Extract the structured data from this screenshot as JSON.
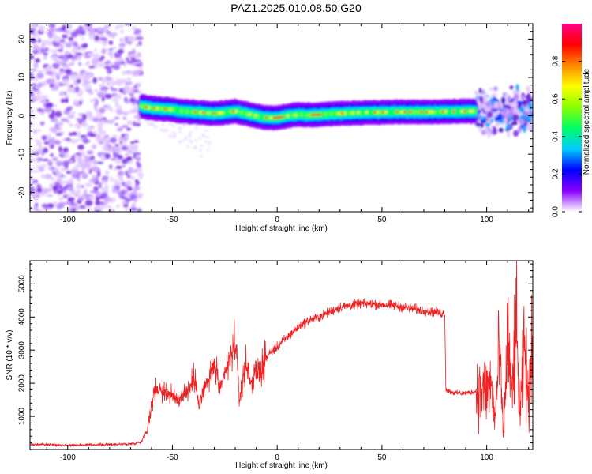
{
  "title": "PAZ1.2025.010.08.50.G20",
  "chart_data": [
    {
      "type": "heatmap",
      "xlabel": "Height of straight line (km)",
      "ylabel": "Frequency (Hz)",
      "xlim": [
        -118,
        122
      ],
      "ylim": [
        -25,
        24
      ],
      "xticks": [
        -100,
        -50,
        0,
        50,
        100
      ],
      "xtick_labels": [
        "-100",
        "-50",
        "0",
        "50",
        "100"
      ],
      "yticks": [
        -20,
        -10,
        0,
        10,
        20
      ],
      "ytick_labels": [
        "-20",
        "-10",
        "0",
        "10",
        "20"
      ],
      "signal_ridge": {
        "x": [
          -65,
          -60,
          -55,
          -50,
          -45,
          -40,
          -35,
          -30,
          -25,
          -20,
          -15,
          -10,
          -5,
          0,
          5,
          10,
          15,
          20,
          25,
          30,
          35,
          40,
          45,
          50,
          55,
          60,
          65,
          70,
          75,
          80,
          85,
          90,
          95
        ],
        "frequency": [
          2.5,
          2.0,
          1.8,
          1.6,
          1.2,
          1.0,
          0.8,
          0.6,
          0.8,
          1.2,
          0.6,
          0.0,
          -0.5,
          -0.5,
          0.0,
          0.3,
          0.2,
          0.3,
          0.5,
          0.6,
          0.7,
          0.8,
          0.9,
          0.9,
          1.0,
          1.0,
          1.0,
          1.0,
          1.0,
          1.1,
          1.1,
          1.2,
          1.2
        ]
      },
      "noise_region_x": [
        -118,
        -65
      ],
      "colorbar": {
        "label": "Normalized spectral amplitude",
        "range": [
          0.0,
          1.0
        ],
        "ticks": [
          0.0,
          0.2,
          0.4,
          0.6,
          0.8
        ],
        "tick_labels": [
          "0.0",
          "0.2",
          "0.4",
          "0.6",
          "0.8"
        ],
        "colormap": [
          "#ffffff",
          "#8800ff",
          "#0000ff",
          "#00ccff",
          "#00ff66",
          "#88ff00",
          "#ffff00",
          "#ff8800",
          "#ff0000",
          "#ff0088"
        ]
      }
    },
    {
      "type": "line",
      "xlabel": "Height of straight line (km)",
      "ylabel": "SNR (10 * v/v)",
      "xlim": [
        -118,
        122
      ],
      "ylim": [
        0,
        5700
      ],
      "xticks": [
        -100,
        -50,
        0,
        50,
        100
      ],
      "xtick_labels": [
        "-100",
        "-50",
        "0",
        "50",
        "100"
      ],
      "yticks": [
        1000,
        2000,
        3000,
        4000,
        5000
      ],
      "ytick_labels": [
        "1000",
        "2000",
        "3000",
        "4000",
        "5000"
      ],
      "line_color": "#ee2222",
      "series": [
        {
          "x": [
            -118,
            -110,
            -100,
            -90,
            -80,
            -70,
            -65,
            -62,
            -60,
            -58,
            -55,
            -52,
            -50,
            -47,
            -45,
            -42,
            -40,
            -37,
            -35,
            -32,
            -30,
            -27,
            -25,
            -22,
            -20,
            -18,
            -15,
            -12,
            -10,
            -7,
            -5,
            -2,
            0,
            5,
            10,
            15,
            20,
            25,
            30,
            35,
            40,
            45,
            50,
            55,
            60,
            65,
            70,
            75,
            80,
            80.5,
            85,
            90,
            95,
            100,
            102,
            104,
            106,
            108,
            110,
            112,
            114,
            116,
            118,
            120,
            122
          ],
          "values": [
            150,
            150,
            130,
            140,
            150,
            170,
            220,
            600,
            1300,
            1900,
            1800,
            1700,
            1600,
            1500,
            1700,
            1800,
            2200,
            1400,
            1800,
            2200,
            2600,
            1700,
            2300,
            2800,
            3300,
            1500,
            2600,
            2000,
            2300,
            2500,
            2800,
            3000,
            3100,
            3400,
            3700,
            3900,
            4000,
            4150,
            4300,
            4350,
            4400,
            4400,
            4380,
            4350,
            4300,
            4250,
            4200,
            4150,
            4100,
            1800,
            1700,
            1700,
            1750,
            1800,
            2000,
            900,
            3000,
            400,
            3500,
            1500,
            3800,
            900,
            3200,
            1200,
            4000
          ]
        }
      ]
    }
  ]
}
